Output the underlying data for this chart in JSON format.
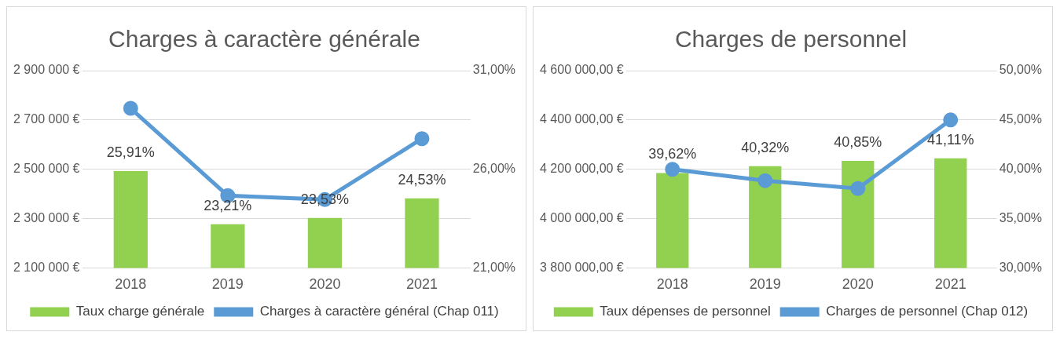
{
  "chart_data": [
    {
      "type": "bar",
      "title": "Charges à caractère générale",
      "categories": [
        "2018",
        "2019",
        "2020",
        "2021"
      ],
      "series": [
        {
          "name": "Taux charge générale",
          "axis": "y2",
          "color": "#92d050",
          "values": [
            25.91,
            23.21,
            23.53,
            24.53
          ],
          "value_labels": [
            "25,91%",
            "23,21%",
            "23,53%",
            "24,53%"
          ]
        },
        {
          "name": "Charges à caractère général (Chap 011)",
          "type": "line",
          "color": "#5b9bd5",
          "marker": "circle",
          "values": [
            2747000,
            2393000,
            2377000,
            2624000
          ]
        }
      ],
      "ylim": [
        2100000,
        2900000
      ],
      "yticks": [
        {
          "value": 2100000,
          "label": "2 100 000 €"
        },
        {
          "value": 2300000,
          "label": "2 300 000 €"
        },
        {
          "value": 2500000,
          "label": "2 500 000 €"
        },
        {
          "value": 2700000,
          "label": "2 700 000 €"
        },
        {
          "value": 2900000,
          "label": "2 900 000 €"
        }
      ],
      "y2lim": [
        21,
        31
      ],
      "y2ticks": [
        {
          "value": 21,
          "label": "21,00%"
        },
        {
          "value": 26,
          "label": "26,00%"
        },
        {
          "value": 31,
          "label": "31,00%"
        }
      ],
      "grid": "y",
      "legend": "bottom"
    },
    {
      "type": "bar",
      "title": "Charges de personnel",
      "categories": [
        "2018",
        "2019",
        "2020",
        "2021"
      ],
      "series": [
        {
          "name": "Taux dépenses de personnel",
          "axis": "y2",
          "color": "#92d050",
          "values": [
            39.62,
            40.32,
            40.85,
            41.11
          ],
          "value_labels": [
            "39,62%",
            "40,32%",
            "40,85%",
            "41,11%"
          ]
        },
        {
          "name": "Charges de personnel (Chap 012)",
          "type": "line",
          "color": "#5b9bd5",
          "marker": "circle",
          "values": [
            4200000,
            4154000,
            4122000,
            4400000
          ]
        }
      ],
      "ylim": [
        3800000,
        4600000
      ],
      "yticks": [
        {
          "value": 3800000,
          "label": "3 800 000,00 €"
        },
        {
          "value": 4000000,
          "label": "4 000 000,00 €"
        },
        {
          "value": 4200000,
          "label": "4 200 000,00 €"
        },
        {
          "value": 4400000,
          "label": "4 400 000,00 €"
        },
        {
          "value": 4600000,
          "label": "4 600 000,00 €"
        }
      ],
      "y2lim": [
        30,
        50
      ],
      "y2ticks": [
        {
          "value": 30,
          "label": "30,00%"
        },
        {
          "value": 35,
          "label": "35,00%"
        },
        {
          "value": 40,
          "label": "40,00%"
        },
        {
          "value": 45,
          "label": "45,00%"
        },
        {
          "value": 50,
          "label": "50,00%"
        }
      ],
      "grid": "y",
      "legend": "bottom"
    }
  ]
}
